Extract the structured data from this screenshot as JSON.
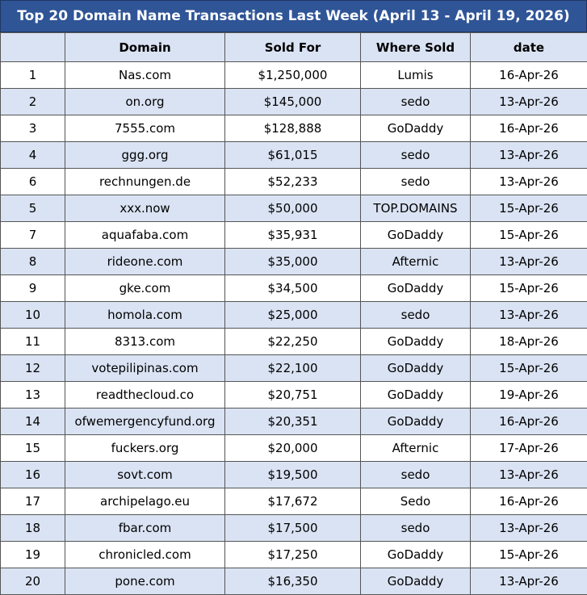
{
  "header": {
    "title": "Top 20 Domain Name Transactions Last Week (April 13 - April 19, 2026)"
  },
  "table": {
    "columns": [
      "",
      "Domain",
      "Sold For",
      "Where Sold",
      "date"
    ],
    "rows": [
      [
        "1",
        "Nas.com",
        "$1,250,000",
        "Lumis",
        "16-Apr-26"
      ],
      [
        "2",
        "on.org",
        "$145,000",
        "sedo",
        "13-Apr-26"
      ],
      [
        "3",
        "7555.com",
        "$128,888",
        "GoDaddy",
        "16-Apr-26"
      ],
      [
        "4",
        "ggg.org",
        "$61,015",
        "sedo",
        "13-Apr-26"
      ],
      [
        "6",
        "rechnungen.de",
        "$52,233",
        "sedo",
        "13-Apr-26"
      ],
      [
        "5",
        "xxx.now",
        "$50,000",
        "TOP.DOMAINS",
        "15-Apr-26"
      ],
      [
        "7",
        "aquafaba.com",
        "$35,931",
        "GoDaddy",
        "15-Apr-26"
      ],
      [
        "8",
        "rideone.com",
        "$35,000",
        "Afternic",
        "13-Apr-26"
      ],
      [
        "9",
        "gke.com",
        "$34,500",
        "GoDaddy",
        "15-Apr-26"
      ],
      [
        "10",
        "homola.com",
        "$25,000",
        "sedo",
        "13-Apr-26"
      ],
      [
        "11",
        "8313.com",
        "$22,250",
        "GoDaddy",
        "18-Apr-26"
      ],
      [
        "12",
        "votepilipinas.com",
        "$22,100",
        "GoDaddy",
        "15-Apr-26"
      ],
      [
        "13",
        "readthecloud.co",
        "$20,751",
        "GoDaddy",
        "19-Apr-26"
      ],
      [
        "14",
        "ofwemergencyfund.org",
        "$20,351",
        "GoDaddy",
        "16-Apr-26"
      ],
      [
        "15",
        "fuckers.org",
        "$20,000",
        "Afternic",
        "17-Apr-26"
      ],
      [
        "16",
        "sovt.com",
        "$19,500",
        "sedo",
        "13-Apr-26"
      ],
      [
        "17",
        "archipelago.eu",
        "$17,672",
        "Sedo",
        "16-Apr-26"
      ],
      [
        "18",
        "fbar.com",
        "$17,500",
        "sedo",
        "13-Apr-26"
      ],
      [
        "19",
        "chronicled.com",
        "$17,250",
        "GoDaddy",
        "15-Apr-26"
      ],
      [
        "20",
        "pone.com",
        "$16,350",
        "GoDaddy",
        "13-Apr-26"
      ]
    ]
  }
}
